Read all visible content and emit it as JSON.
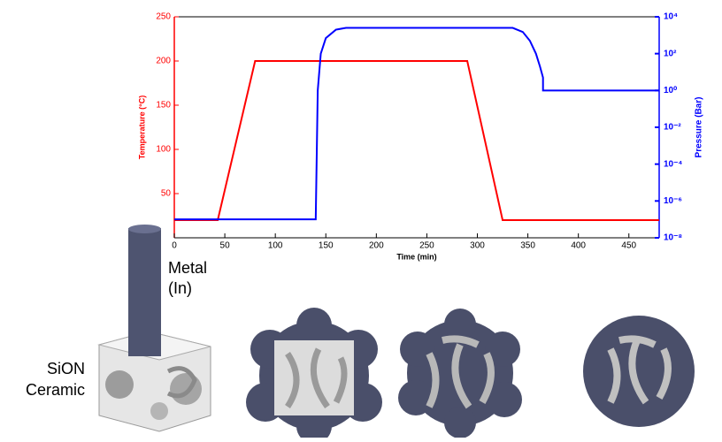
{
  "chart_data": {
    "type": "line",
    "xlabel": "Time (min)",
    "ylabel": "Temperature (°C)",
    "y2label": "Pressure (Bar)",
    "xlim": [
      0,
      480
    ],
    "xticks": [
      0,
      50,
      100,
      150,
      200,
      250,
      300,
      350,
      400,
      450
    ],
    "ylim": [
      0,
      250
    ],
    "yticks": [
      50,
      100,
      150,
      200,
      250
    ],
    "y2lim": [
      1e-08,
      10000
    ],
    "y2log": true,
    "y2ticks": [
      {
        "value": 1e-08,
        "label": "10⁻⁸"
      },
      {
        "value": 1e-06,
        "label": "10⁻⁶"
      },
      {
        "value": 0.0001,
        "label": "10⁻⁴"
      },
      {
        "value": 0.01,
        "label": "10⁻²"
      },
      {
        "value": 1,
        "label": "10⁰"
      },
      {
        "value": 100,
        "label": "10²"
      },
      {
        "value": 10000,
        "label": "10⁴"
      }
    ],
    "ycolor": "#ff0000",
    "y2color": "#0000ff",
    "series": [
      {
        "name": "Temperature",
        "color": "#ff0000",
        "x": [
          0,
          43,
          80,
          290,
          325,
          480
        ],
        "values": [
          20,
          20,
          200,
          200,
          20,
          20
        ]
      },
      {
        "name": "Pressure",
        "color": "#0000ff",
        "axis": "y2",
        "x": [
          0,
          140,
          142,
          145,
          150,
          160,
          170,
          335,
          345,
          352,
          358,
          362,
          365,
          365,
          480
        ],
        "values": [
          1e-07,
          1e-07,
          1,
          100,
          700,
          2000,
          2500,
          2500,
          1500,
          500,
          100,
          20,
          5,
          1,
          1
        ]
      }
    ],
    "annotations": [
      "Metal",
      "(In)",
      "SiON",
      "Ceramic"
    ]
  }
}
